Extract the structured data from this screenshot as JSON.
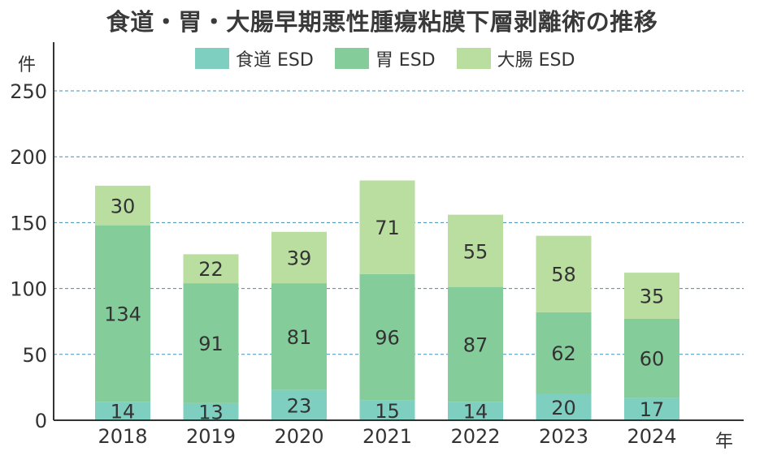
{
  "chart_data": {
    "type": "bar",
    "stacked": true,
    "title": "食道・胃・大腸早期悪性腫瘍粘膜下層剥離術の推移",
    "ylabel": "件",
    "xlabel": "年",
    "categories": [
      "2018",
      "2019",
      "2020",
      "2021",
      "2022",
      "2023",
      "2024"
    ],
    "series": [
      {
        "name": "食道 ESD",
        "color": "#7ecfc0",
        "values": [
          14,
          13,
          23,
          15,
          14,
          20,
          17
        ]
      },
      {
        "name": "胃 ESD",
        "color": "#84cc9a",
        "values": [
          134,
          91,
          81,
          96,
          87,
          62,
          60
        ]
      },
      {
        "name": "大腸 ESD",
        "color": "#b9dea0",
        "values": [
          30,
          22,
          39,
          71,
          55,
          58,
          35
        ]
      }
    ],
    "ylim": [
      0,
      250
    ],
    "yticks": [
      0,
      50,
      100,
      150,
      200,
      250
    ],
    "grid": true,
    "legend_position": "top"
  }
}
